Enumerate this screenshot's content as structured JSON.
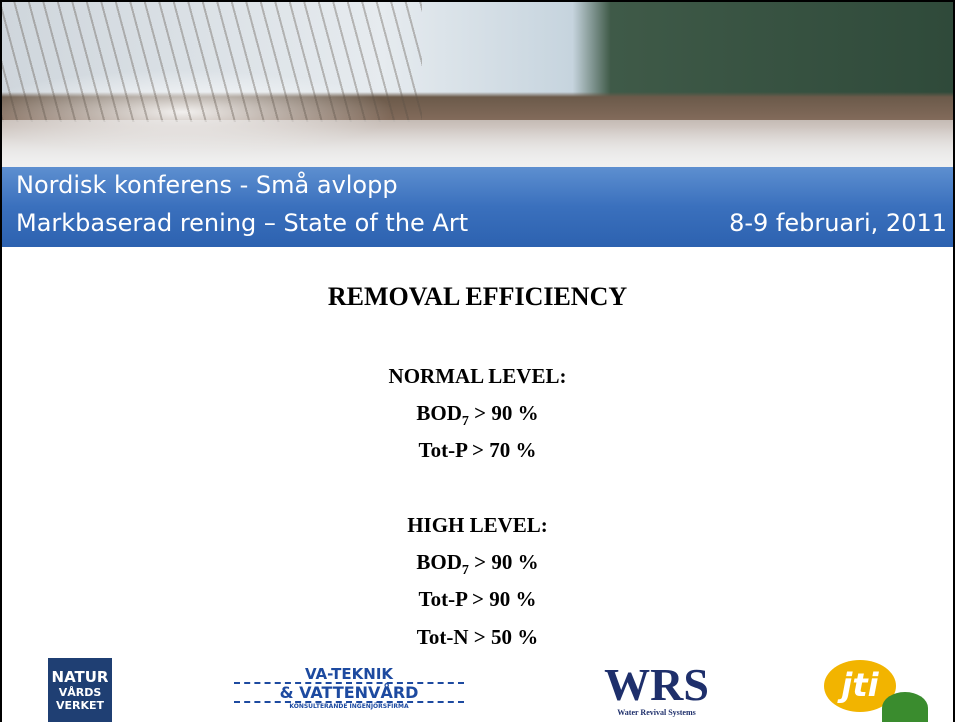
{
  "header": {
    "line1": "Nordisk konferens - Små avlopp",
    "line2": "Markbaserad rening – State of the Art",
    "date": "8-9 februari, 2011"
  },
  "title": "REMOVAL  EFFICIENCY",
  "sections": [
    {
      "heading": "NORMAL  LEVEL:",
      "items": [
        {
          "main": "BOD",
          "sub": "7",
          "tail": " > 90 %"
        },
        {
          "main": "Tot-P > 70 %"
        }
      ]
    },
    {
      "heading": "HIGH  LEVEL:",
      "items": [
        {
          "main": "BOD",
          "sub": "7",
          "tail": " > 90 %"
        },
        {
          "main": "Tot-P > 90 %"
        },
        {
          "main": "Tot-N > 50 %"
        }
      ]
    }
  ],
  "logos": {
    "naturvardsverket": [
      "NATUR",
      "VÅRDS",
      "VERKET"
    ],
    "vateknik": [
      "VA-TEKNIK",
      "& VATTENVÅRD",
      "KONSULTERANDE INGENJÖRSFIRMA"
    ],
    "wrs": [
      "WRS",
      "Water Revival Systems"
    ],
    "jti": "jti"
  }
}
